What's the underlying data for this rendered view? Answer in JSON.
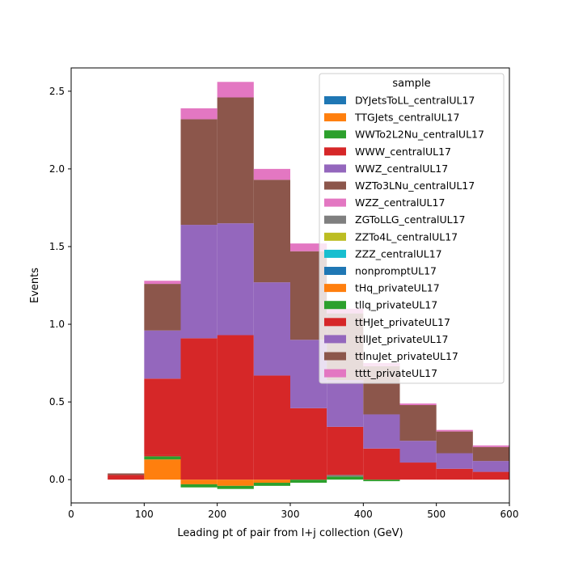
{
  "chart_data": {
    "type": "bar",
    "stacked": true,
    "histogram": true,
    "xlabel": "Leading pt of pair from l+j collection (GeV)",
    "ylabel": "Events",
    "xlim": [
      0,
      600
    ],
    "ylim": [
      -0.15,
      2.65
    ],
    "x_ticks": [
      "0",
      "100",
      "200",
      "300",
      "400",
      "500",
      "600"
    ],
    "y_ticks": [
      "0.0",
      "0.5",
      "1.0",
      "1.5",
      "2.0",
      "2.5"
    ],
    "bin_edges": [
      50,
      100,
      150,
      200,
      250,
      300,
      350,
      400,
      450,
      500,
      550,
      600
    ],
    "legend": {
      "title": "sample",
      "placement": "top-right"
    },
    "series": [
      {
        "name": "DYJetsToLL_centralUL17",
        "color": "#1f77b4",
        "values": [
          0,
          0,
          0,
          0,
          0,
          0,
          0,
          0,
          0,
          0,
          0
        ]
      },
      {
        "name": "TTGJets_centralUL17",
        "color": "#ff7f0e",
        "values": [
          0,
          0.13,
          -0.03,
          -0.04,
          -0.02,
          0,
          0,
          0,
          0,
          0,
          0
        ]
      },
      {
        "name": "WWTo2L2Nu_centralUL17",
        "color": "#2ca02c",
        "values": [
          0,
          0.02,
          -0.02,
          -0.02,
          -0.02,
          -0.02,
          0.02,
          -0.01,
          0,
          0,
          0
        ]
      },
      {
        "name": "WWW_centralUL17",
        "color": "#d62728",
        "values": [
          0.03,
          0.01,
          0,
          0,
          0,
          0,
          0,
          0,
          0,
          0,
          0
        ]
      },
      {
        "name": "WWZ_centralUL17",
        "color": "#9467bd",
        "values": [
          0,
          0,
          0,
          0,
          0,
          0,
          0,
          0,
          0,
          0,
          0
        ]
      },
      {
        "name": "WZTo3LNu_centralUL17",
        "color": "#8c564b",
        "values": [
          0.01,
          0,
          0,
          0,
          0,
          0,
          0,
          0,
          0,
          0,
          0
        ]
      },
      {
        "name": "WZZ_centralUL17",
        "color": "#e377c2",
        "values": [
          0,
          0,
          0,
          0,
          0,
          0,
          0,
          0,
          0,
          0,
          0
        ]
      },
      {
        "name": "ZGToLLG_centralUL17",
        "color": "#7f7f7f",
        "values": [
          0,
          0,
          0,
          0,
          0,
          0,
          0.01,
          0,
          0,
          0,
          0
        ]
      },
      {
        "name": "ZZTo4L_centralUL17",
        "color": "#bcbd22",
        "values": [
          0,
          0,
          0,
          0,
          0,
          0,
          0,
          0,
          0,
          0,
          0
        ]
      },
      {
        "name": "ZZZ_centralUL17",
        "color": "#17becf",
        "values": [
          0,
          0,
          0,
          0,
          0,
          0,
          0,
          0,
          0,
          0,
          0
        ]
      },
      {
        "name": "nonpromptUL17",
        "color": "#1f77b4",
        "values": [
          0,
          0,
          0,
          0,
          0,
          0,
          0,
          0,
          0,
          0,
          0
        ]
      },
      {
        "name": "tHq_privateUL17",
        "color": "#ff7f0e",
        "values": [
          0,
          0,
          0,
          0,
          0,
          0,
          0,
          0,
          0,
          0,
          0
        ]
      },
      {
        "name": "tllq_privateUL17",
        "color": "#2ca02c",
        "values": [
          0,
          0,
          0,
          0,
          0,
          0,
          0,
          0,
          0,
          0,
          0
        ]
      },
      {
        "name": "ttHJet_privateUL17",
        "color": "#d62728",
        "values": [
          0,
          0.49,
          0.91,
          0.93,
          0.67,
          0.46,
          0.31,
          0.2,
          0.11,
          0.07,
          0.05
        ]
      },
      {
        "name": "ttllJet_privateUL17",
        "color": "#9467bd",
        "values": [
          0,
          0.31,
          0.73,
          0.72,
          0.6,
          0.44,
          0.3,
          0.22,
          0.14,
          0.1,
          0.07
        ]
      },
      {
        "name": "ttlnuJet_privateUL17",
        "color": "#8c564b",
        "values": [
          0,
          0.3,
          0.68,
          0.81,
          0.66,
          0.57,
          0.43,
          0.31,
          0.23,
          0.14,
          0.09
        ]
      },
      {
        "name": "tttt_privateUL17",
        "color": "#e377c2",
        "values": [
          0,
          0.02,
          0.07,
          0.1,
          0.07,
          0.05,
          0.03,
          0.02,
          0.01,
          0.01,
          0.01
        ]
      }
    ]
  }
}
